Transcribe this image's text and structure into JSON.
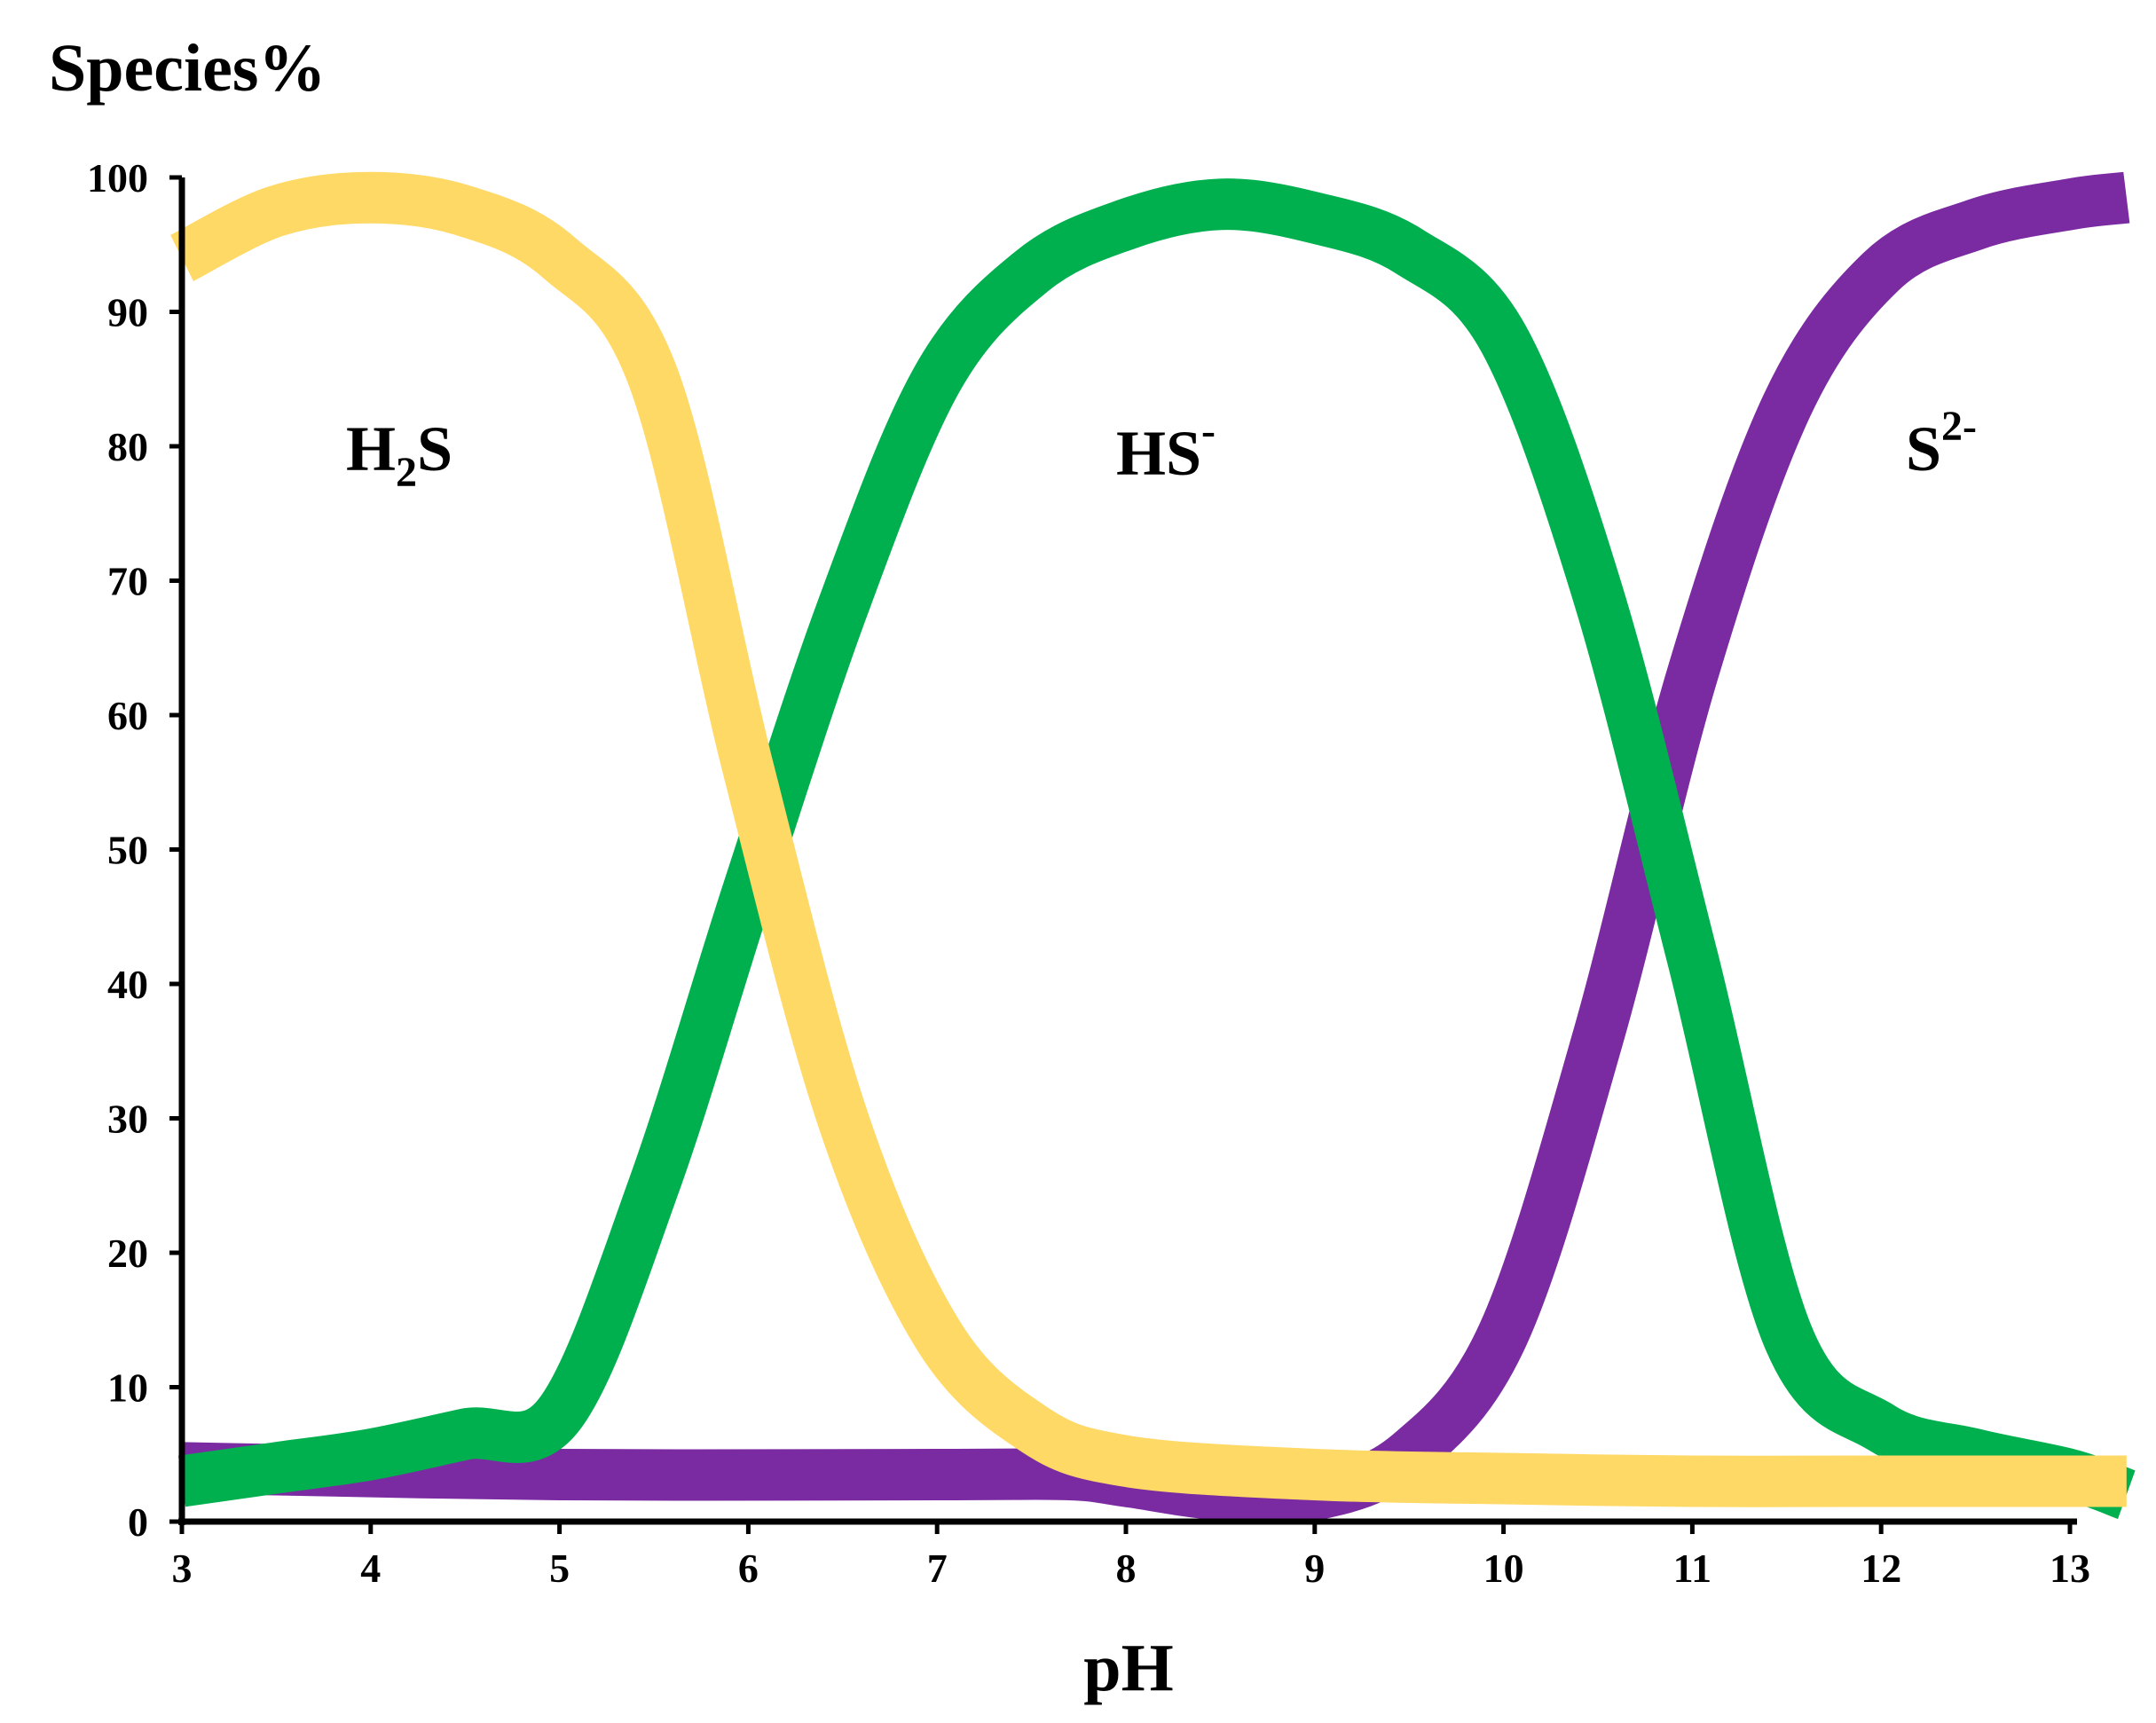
{
  "chart_data": {
    "type": "line",
    "ylabel": "Species%",
    "xlabel": "pH",
    "xlim": [
      3,
      13.3
    ],
    "ylim": [
      0,
      100
    ],
    "x_ticks": [
      "3",
      "4",
      "5",
      "6",
      "7",
      "8",
      "9",
      "10",
      "11",
      "12",
      "13"
    ],
    "y_ticks": [
      "0",
      "10",
      "20",
      "30",
      "40",
      "50",
      "60",
      "70",
      "80",
      "90",
      "100"
    ],
    "grid": false,
    "legend": "none",
    "annotations": [
      {
        "base": "H",
        "sub": "2",
        "tail": "S",
        "sup": ""
      },
      {
        "base": "HS",
        "sub": "",
        "tail": "",
        "sup": "-"
      },
      {
        "base": "S",
        "sub": "",
        "tail": "",
        "sup": "2-"
      }
    ],
    "series": [
      {
        "color": "#ffd966",
        "x": [
          3.0,
          3.5,
          4.0,
          4.5,
          5.0,
          5.5,
          6.0,
          6.5,
          7.0,
          7.5,
          8.0,
          9.0,
          10.0,
          11.0,
          12.0,
          13.3
        ],
        "values": [
          94,
          97.5,
          98.5,
          97.5,
          94,
          85,
          56,
          30,
          14,
          7,
          4.5,
          3.5,
          3.2,
          3,
          3,
          3
        ]
      },
      {
        "color": "#00b04f",
        "x": [
          3.0,
          3.5,
          4.0,
          4.5,
          5.0,
          5.5,
          6.0,
          6.5,
          7.0,
          7.5,
          8.0,
          8.5,
          9.0,
          9.5,
          10.0,
          10.5,
          11.0,
          11.5,
          12.0,
          12.5,
          13.0,
          13.3
        ],
        "values": [
          3,
          4,
          5,
          6.5,
          8,
          25,
          47,
          68,
          85,
          93,
          96.5,
          98,
          97,
          94.5,
          88,
          69,
          42,
          14,
          7,
          5,
          3.5,
          2
        ]
      },
      {
        "color": "#7b2ba1",
        "x": [
          3.0,
          5.0,
          7.0,
          7.7,
          8.0,
          8.5,
          9.0,
          9.5,
          10.0,
          10.5,
          11.0,
          11.5,
          12.0,
          12.5,
          13.0,
          13.3
        ],
        "values": [
          4,
          3.5,
          3.5,
          3.5,
          3,
          2,
          2,
          5,
          14,
          36,
          63,
          83,
          93,
          96.5,
          98,
          98.5
        ]
      }
    ]
  }
}
